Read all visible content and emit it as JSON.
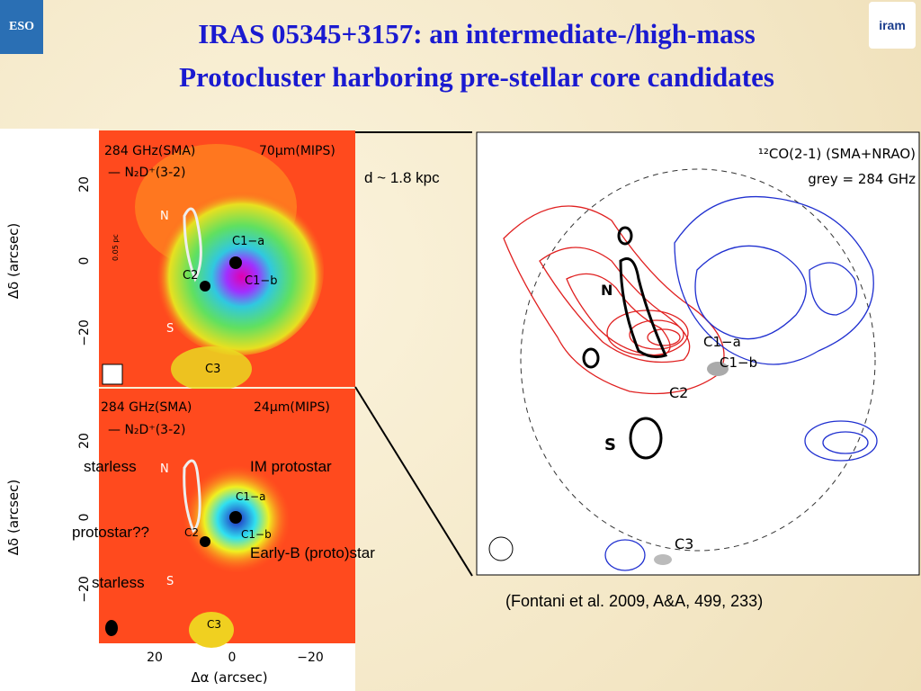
{
  "header": {
    "title_lines": [
      "IRAS 05345+3157: an intermediate-/high-mass",
      "Protocluster harboring pre-stellar core candidates"
    ],
    "logo_left": "ESO",
    "logo_right": "iram"
  },
  "figure_left": {
    "top_panel": {
      "label_left": "284 GHz(SMA)",
      "label_right": "70μm(MIPS)",
      "label_line": "— N₂D⁺(3-2)",
      "sources": [
        "N",
        "C1−a",
        "C1−b",
        "C2",
        "S",
        "C3"
      ],
      "scale": "0.05 pc"
    },
    "bottom_panel": {
      "label_left": "284 GHz(SMA)",
      "label_right": "24μm(MIPS)",
      "label_line": "— N₂D⁺(3-2)",
      "sources": [
        "N",
        "C1−a",
        "C1−b",
        "C2",
        "S",
        "C3"
      ]
    },
    "y_axis_label": "Δδ (arcsec)",
    "y_ticks": [
      "20",
      "0",
      "−20"
    ],
    "x_axis_label": "Δα (arcsec)",
    "x_ticks": [
      "20",
      "0",
      "−20"
    ]
  },
  "figure_right": {
    "label_line1": "¹²CO(2-1) (SMA+NRAO)",
    "label_line2": "grey = 284 GHz",
    "sources": [
      "N",
      "C1−a",
      "C1−b",
      "C2",
      "S",
      "C3"
    ]
  },
  "annotations": {
    "distance": "d ~ 1.8 kpc",
    "starless_top": "starless",
    "im_protostar": "IM protostar",
    "protostar_q": "protostar??",
    "early_b": "Early-B (proto)star",
    "starless_bottom": "starless"
  },
  "citation": "(Fontani et al. 2009, A&A, 499, 233)"
}
